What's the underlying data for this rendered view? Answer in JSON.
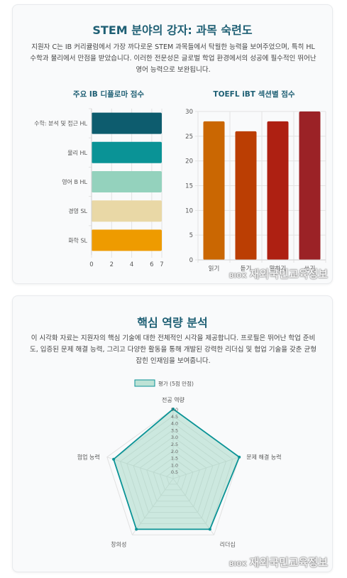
{
  "card1": {
    "title": "STEM 분야의 강자: 과목 숙련도",
    "description": "지원자 C는 IB 커리큘럼에서 가장 까다로운 STEM 과목들에서 탁월한 능력을 보여주었으며, 특히 HL 수학과 물리에서 만점을 받았습니다. 이러한 전문성은 글로벌 학업 환경에서의 성공에 필수적인 뛰어난 영어 능력으로 보완됩니다."
  },
  "card2": {
    "title": "핵심 역량 분석",
    "description": "이 시각화 자료는 지원자의 핵심 기술에 대한 전체적인 시각을 제공합니다. 프로필은 뛰어난 학업 준비도, 입증된 문제 해결 능력, 그리고 다양한 활동을 통해 개발된 강력한 리더십 및 협업 기술을 갖춘 균형 잡힌 인재임을 보여줍니다."
  },
  "watermark": {
    "small": "BIOK",
    "main": "재외국민교육정보"
  },
  "chart_data": [
    {
      "type": "bar",
      "orientation": "horizontal",
      "title": "주요 IB 디플로마 점수",
      "categories": [
        "수학: 분석 및 접근 HL",
        "물리 HL",
        "영어 B HL",
        "경영 SL",
        "화학 SL"
      ],
      "values": [
        7,
        7,
        7,
        7,
        7
      ],
      "colors": [
        "#0d5c6e",
        "#0a9396",
        "#94d2bd",
        "#e9d8a6",
        "#ee9b00"
      ],
      "xlim": [
        0,
        7
      ],
      "xticks": [
        0,
        2,
        4,
        6,
        7
      ],
      "grid": true
    },
    {
      "type": "bar",
      "title": "TOEFL iBT 섹션별 점수",
      "categories": [
        "읽기",
        "듣기",
        "말하기",
        "쓰기"
      ],
      "values": [
        28,
        26,
        28,
        30
      ],
      "colors": [
        "#ca6702",
        "#bb3e03",
        "#ae2012",
        "#9b2226"
      ],
      "ylim": [
        0,
        30
      ],
      "yticks": [
        0,
        5,
        10,
        15,
        20,
        25,
        30
      ],
      "grid": true
    },
    {
      "type": "radar",
      "categories": [
        "전공 역량",
        "문제 해결 능력",
        "리더십",
        "창의성",
        "협업 능력"
      ],
      "series": [
        {
          "name": "평가 (5점 만점)",
          "values": [
            5,
            5,
            4.5,
            4.5,
            4.5
          ]
        }
      ],
      "rlim": [
        0,
        5
      ],
      "rticks": [
        "0.5",
        "1.0",
        "1.5",
        "2.0",
        "2.5",
        "3.0",
        "3.5",
        "4.0",
        "4.5",
        "5.0"
      ],
      "line_color": "#0a9396",
      "fill_color": "#94d2bd"
    }
  ]
}
